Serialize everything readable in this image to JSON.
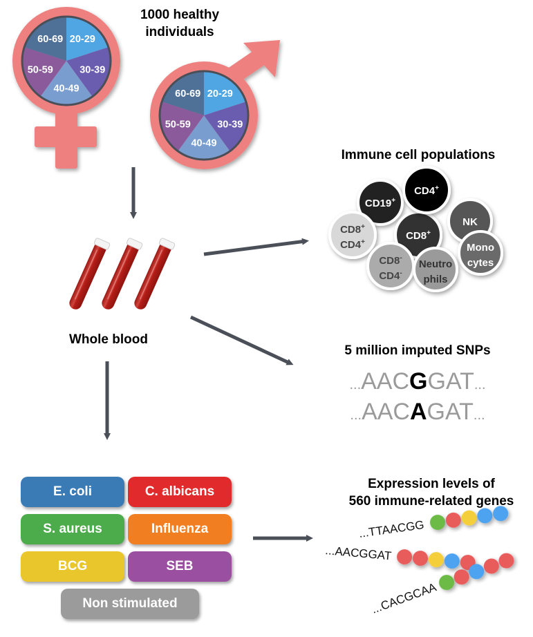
{
  "cohort": {
    "title_line1": "1000 healthy",
    "title_line2": "individuals",
    "age_groups": [
      "20-29",
      "30-39",
      "40-49",
      "50-59",
      "60-69"
    ],
    "age_colors": [
      "#4fa6e3",
      "#6a5db0",
      "#7a9dcf",
      "#8a5a9b",
      "#4f7097"
    ],
    "symbol_color": "#ee8080"
  },
  "blood": {
    "label": "Whole blood",
    "tube_color": "#b41d17"
  },
  "arrow_color": "#4b4f58",
  "immune": {
    "title": "Immune cell populations",
    "cells": [
      {
        "label1": "CD19",
        "sup1": "+",
        "label2": "",
        "sup2": "",
        "fill": "#222222",
        "text": "#ffffff"
      },
      {
        "label1": "NK",
        "sup1": "",
        "label2": "",
        "sup2": "",
        "fill": "#575757",
        "text": "#ffffff"
      },
      {
        "label1": "CD8",
        "sup1": "+",
        "label2": "",
        "sup2": "",
        "fill": "#333333",
        "text": "#ffffff"
      },
      {
        "label1": "CD4",
        "sup1": "+",
        "label2": "",
        "sup2": "",
        "fill": "#000000",
        "text": "#ffffff"
      },
      {
        "label1": "CD8",
        "sup1": "+",
        "label2": "CD4",
        "sup2": "+",
        "fill": "#d8d8d8",
        "text": "#444444"
      },
      {
        "label1": "Mono",
        "sup1": "",
        "label2": "cytes",
        "sup2": "",
        "fill": "#6b6b6b",
        "text": "#ffffff"
      },
      {
        "label1": "CD8",
        "sup1": "-",
        "label2": "CD4",
        "sup2": "-",
        "fill": "#ababab",
        "text": "#444444"
      },
      {
        "label1": "Neutro",
        "sup1": "",
        "label2": "phils",
        "sup2": "",
        "fill": "#9a9a9a",
        "text": "#333333"
      }
    ]
  },
  "snps": {
    "title": "5 million imputed SNPs",
    "row1": {
      "prefix": "...",
      "before": "AAC",
      "variant": "G",
      "after": "GAT",
      "suffix": "..."
    },
    "row2": {
      "prefix": "...",
      "before": "AAC",
      "variant": "A",
      "after": "GAT",
      "suffix": "..."
    }
  },
  "stimuli": [
    {
      "label": "E. coli",
      "color": "#3a7bb6"
    },
    {
      "label": "C. albicans",
      "color": "#e02a2c"
    },
    {
      "label": "S. aureus",
      "color": "#4cab4b"
    },
    {
      "label": "Influenza",
      "color": "#f27e22"
    },
    {
      "label": "BCG",
      "color": "#e9c62b"
    },
    {
      "label": "SEB",
      "color": "#9a4fa1"
    },
    {
      "label": "Non stimulated",
      "color": "#9b9b9b"
    }
  ],
  "expression": {
    "title_line1": "Expression levels of",
    "title_line2": "560 immune-related genes",
    "rows": [
      {
        "seq": "...TTAACGG",
        "beads": [
          "#6cbb47",
          "#e95b5b",
          "#f4cf3a",
          "#4da3f0",
          "#4da3f0"
        ]
      },
      {
        "seq": "...AACGGAT",
        "beads": [
          "#e95b5b",
          "#e95b5b",
          "#f4cf3a",
          "#4da3f0",
          "#e95b5b"
        ]
      },
      {
        "seq": "...CACGCAA",
        "beads": [
          "#6cbb47",
          "#e95b5b",
          "#4da3f0",
          "#e95b5b",
          "#e95b5b"
        ]
      }
    ]
  }
}
